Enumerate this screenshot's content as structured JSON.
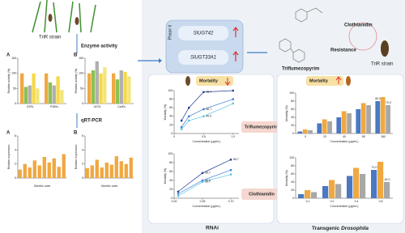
{
  "left": {
    "strain": "TriR strain",
    "step1": "Enzyme activity",
    "step2": "qRT-PCR",
    "charts": [
      {
        "type": "bar",
        "label": "A",
        "ylabel": "Relative activity (%)",
        "categories": [
          "GSTs",
          "P450s"
        ],
        "ylim": [
          0,
          150
        ],
        "yticks": [
          0,
          50,
          100,
          150
        ],
        "series": [
          {
            "color": "#f0a840",
            "values": [
              100,
              100
            ]
          },
          {
            "color": "#8cc152",
            "values": [
              55,
              70
            ]
          },
          {
            "color": "#b0b0b0",
            "values": [
              60,
              60
            ]
          },
          {
            "color": "#f6d94a",
            "values": [
              100,
              90
            ]
          },
          {
            "color": "#f3e47a",
            "values": [
              50,
              45
            ]
          }
        ]
      },
      {
        "type": "bar",
        "label": "B",
        "ylabel": "Relative activity (%)",
        "categories": [
          "UGTs",
          "CarEs"
        ],
        "ylim": [
          0,
          150
        ],
        "yticks": [
          0,
          50,
          100,
          150
        ],
        "series": [
          {
            "color": "#f0a840",
            "values": [
              100,
              100
            ]
          },
          {
            "color": "#8cc152",
            "values": [
              110,
              80
            ]
          },
          {
            "color": "#b0b0b0",
            "values": [
              140,
              110
            ]
          },
          {
            "color": "#f6d94a",
            "values": [
              100,
              105
            ]
          },
          {
            "color": "#f3e47a",
            "values": [
              120,
              90
            ]
          }
        ]
      },
      {
        "type": "bar",
        "label": "A",
        "ylabel": "Relative expression",
        "xlabel": "Genetic code",
        "categories": [
          null,
          null,
          null,
          null,
          null,
          null,
          null,
          null,
          null,
          null
        ],
        "ylim": [
          0,
          6
        ],
        "yticks": [
          0,
          2,
          4,
          6
        ],
        "series": [
          {
            "color": "#f0a840",
            "values": [
              1.2,
              2.0,
              1.5,
              2.5,
              1.8,
              3.0,
              2.2,
              2.8,
              1.6,
              3.4
            ]
          }
        ]
      },
      {
        "type": "bar",
        "label": "B",
        "ylabel": "Relative expression",
        "xlabel": "Genetic code",
        "categories": [
          null,
          null,
          null,
          null,
          null,
          null,
          null,
          null,
          null,
          null
        ],
        "ylim": [
          0,
          6
        ],
        "yticks": [
          0,
          2,
          4,
          6
        ],
        "series": [
          {
            "color": "#f0a840",
            "values": [
              1.4,
              1.8,
              2.6,
              1.5,
              2.2,
              1.9,
              3.1,
              2.4,
              2.0,
              2.9
            ]
          }
        ]
      }
    ]
  },
  "phase": {
    "title": "Phase II",
    "genes": [
      "SlUGT42",
      "SlUGT33A1"
    ]
  },
  "right_top": {
    "compound1": "Clothianidin",
    "compound2": "Triflumezopyrim",
    "resistance": "Resistance",
    "strain": "TriR strain"
  },
  "rnai": {
    "tag": "Mortality",
    "title": "RNAi",
    "insecticides": [
      "Triflumezopyrim",
      "Clothianidin"
    ],
    "charts": [
      {
        "type": "line",
        "ylabel": "Mortality (%)",
        "xlabel": "Concentration (μg/mL)",
        "xlim": [
          0,
          1.1
        ],
        "xticks": [
          0,
          0.5,
          {
            "value": 1,
            "label": "1.0"
          }
        ],
        "ylim": [
          0,
          100
        ],
        "yticks": [
          0,
          20,
          40,
          60,
          80,
          100
        ],
        "series": [
          {
            "color": "#1f3a93",
            "x": [
              0.125,
              0.25,
              0.5,
              1
            ],
            "values": [
              30,
              60,
              96.7,
              100
            ],
            "value_labels": [
              null,
              null,
              "96.7",
              null
            ]
          },
          {
            "color": "#3a7bd5",
            "x": [
              0.125,
              0.25,
              0.5,
              1
            ],
            "values": [
              15,
              40,
              56.7,
              80
            ],
            "value_labels": [
              null,
              null,
              "56.7",
              null
            ]
          },
          {
            "color": "#59c3e0",
            "x": [
              0.125,
              0.25,
              0.5,
              1
            ],
            "values": [
              10,
              30,
              40,
              70
            ],
            "value_labels": [
              null,
              null,
              "40.0",
              null
            ]
          }
        ]
      },
      {
        "type": "line",
        "ylabel": "Mortality (%)",
        "xlabel": "Concentration (μg/mL)",
        "xlim": [
          0,
          0.8
        ],
        "xticks": [
          {
            "value": 0,
            "label": "0.00"
          },
          0.35,
          {
            "value": 0.7,
            "label": "0.70"
          }
        ],
        "ylim": [
          0,
          100
        ],
        "yticks": [
          0,
          20,
          40,
          60,
          80,
          100
        ],
        "series": [
          {
            "color": "#1f3a93",
            "x": [
              0.05,
              0.35,
              0.7
            ],
            "values": [
              15,
              56.7,
              86.7
            ],
            "value_labels": [
              null,
              "56.7",
              "86.7"
            ]
          },
          {
            "color": "#3a7bd5",
            "x": [
              0.05,
              0.35,
              0.7
            ],
            "values": [
              10,
              40,
              63.3
            ],
            "value_labels": [
              null,
              "40.0",
              null
            ]
          },
          {
            "color": "#59c3e0",
            "x": [
              0.05,
              0.35,
              0.7
            ],
            "values": [
              5,
              36.7,
              53.3
            ],
            "value_labels": [
              null,
              "36.7",
              null
            ]
          }
        ]
      }
    ]
  },
  "drosophila": {
    "tag": "Mortality",
    "title_a": "Transgenic",
    "title_b": "Drosophila",
    "charts": [
      {
        "type": "bar",
        "ylabel": "Mortality (%)",
        "xlabel": "Concentration (μg/mL)",
        "categories": [
          "0",
          "20",
          "40",
          "80",
          "160"
        ],
        "ylim": [
          0,
          100
        ],
        "yticks": [
          0,
          20,
          40,
          60,
          80,
          100
        ],
        "series": [
          {
            "color": "#4a78c2",
            "values": [
              5,
              25,
              40,
              60,
              80
            ],
            "value_labels": [
              null,
              null,
              null,
              null,
              "80.0"
            ]
          },
          {
            "color": "#f0a840",
            "values": [
              10,
              35,
              55,
              75,
              90
            ]
          },
          {
            "color": "#a8a8a8",
            "values": [
              8,
              30,
              50,
              70,
              70
            ],
            "value_labels": [
              null,
              null,
              null,
              null,
              "70.0"
            ]
          }
        ]
      },
      {
        "type": "bar",
        "ylabel": "Mortality (%)",
        "xlabel": "Concentration (μg/mL)",
        "categories": [
          "0.1",
          "0.2",
          "0.4",
          "0.8"
        ],
        "ylim": [
          0,
          100
        ],
        "yticks": [
          0,
          20,
          40,
          60,
          80,
          100
        ],
        "series": [
          {
            "color": "#4a78c2",
            "values": [
              10,
              30,
              55,
              70
            ],
            "value_labels": [
              null,
              null,
              null,
              "70.0"
            ]
          },
          {
            "color": "#f0a840",
            "values": [
              20,
              45,
              75,
              90
            ]
          },
          {
            "color": "#a8a8a8",
            "values": [
              15,
              35,
              60,
              40
            ],
            "value_labels": [
              null,
              null,
              null,
              "40.0"
            ]
          }
        ]
      }
    ]
  }
}
